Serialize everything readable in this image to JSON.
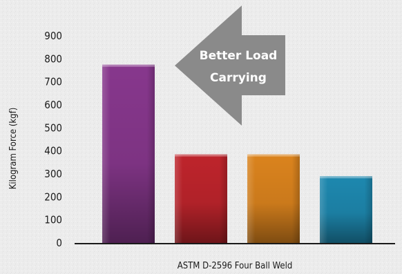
{
  "chart_data": {
    "type": "bar",
    "title": "",
    "xlabel": "ASTM D-2596 Four Ball Weld",
    "ylabel": "Kilogram Force (kgf)",
    "ylim": [
      0,
      900
    ],
    "yticks": [
      "0",
      "100",
      "200",
      "300",
      "400",
      "500",
      "600",
      "700",
      "800",
      "900"
    ],
    "categories": [
      "",
      "",
      "",
      ""
    ],
    "values": [
      775,
      385,
      385,
      290
    ],
    "colors": [
      "#8e3a94",
      "#c8262e",
      "#e68a1f",
      "#1f8fb8"
    ],
    "grid": false,
    "legend": "none",
    "annotation": {
      "lines": [
        "Better Load",
        "Carrying"
      ],
      "shape": "left-arrow",
      "color": "#8a8a8a"
    }
  }
}
